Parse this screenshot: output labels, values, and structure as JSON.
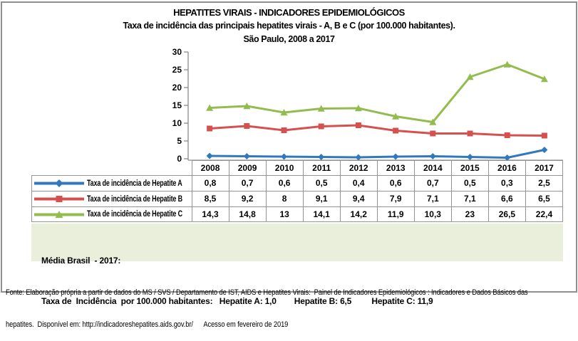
{
  "title": {
    "line1": "HEPATITES VIRAIS - INDICADORES EPIDEMIOLÓGICOS",
    "line2": "Taxa de incidência das principais hepatites virais - A, B e C (por 100.000 habitantes).",
    "line3": "São Paulo, 2008 a 2017"
  },
  "chart_data": {
    "type": "line",
    "title": "HEPATITES VIRAIS - INDICADORES EPIDEMIOLÓGICOS",
    "subtitle": "Taxa de incidência das principais hepatites virais - A, B e C (por 100.000 habitantes).",
    "period": "São Paulo, 2008 a 2017",
    "categories": [
      "2008",
      "2009",
      "2010",
      "2011",
      "2012",
      "2013",
      "2014",
      "2015",
      "2016",
      "2017"
    ],
    "series": [
      {
        "name": "Taxa de incidência de Hepatite A",
        "marker": "diamond",
        "color": "#3179be",
        "values": [
          0.8,
          0.7,
          0.6,
          0.5,
          0.4,
          0.6,
          0.7,
          0.5,
          0.3,
          2.5
        ],
        "labels": [
          "0,8",
          "0,7",
          "0,6",
          "0,5",
          "0,4",
          "0,6",
          "0,7",
          "0,5",
          "0,3",
          "2,5"
        ]
      },
      {
        "name": "Taxa de incidência de Hepatite B",
        "marker": "square",
        "color": "#d5514f",
        "values": [
          8.5,
          9.2,
          8,
          9.1,
          9.4,
          7.9,
          7.1,
          7.1,
          6.6,
          6.5
        ],
        "labels": [
          "8,5",
          "9,2",
          "8",
          "9,1",
          "9,4",
          "7,9",
          "7,1",
          "7,1",
          "6,6",
          "6,5"
        ]
      },
      {
        "name": "Taxa de incidência de Hepatite C",
        "marker": "triangle",
        "color": "#93bc4f",
        "values": [
          14.3,
          14.8,
          13,
          14.1,
          14.2,
          11.9,
          10.3,
          23,
          26.5,
          22.4
        ],
        "labels": [
          "14,3",
          "14,8",
          "13",
          "14,1",
          "14,2",
          "11,9",
          "10,3",
          "23",
          "26,5",
          "22,4"
        ]
      }
    ],
    "yticks": [
      0,
      5,
      10,
      15,
      20,
      25,
      30
    ],
    "ylim": [
      0,
      30
    ],
    "grid": false,
    "legend_position": "data-table-left-column",
    "axis_color": "#8c8c8c"
  },
  "note": {
    "line1": "Média Brasil  - 2017:",
    "line2": "Taxa de  Incidência  por 100.000 habitantes:   Hepatite A: 1,0        Hepatite B: 6,5         Hepatite C: 11,9"
  },
  "footer": {
    "line1": "Fonte: Elaboração própria a partir de dados do MS / SVS / Departamento de IST, AIDS e Hepatites Virais:  Painel de Indicadores Epidemiológicos : Indicadores e Dados Básicos das",
    "line2": "hepatites.  Disponível em: http://indicadoreshepatites.aids.gov.br/      Acesso em fevereiro de 2019"
  }
}
